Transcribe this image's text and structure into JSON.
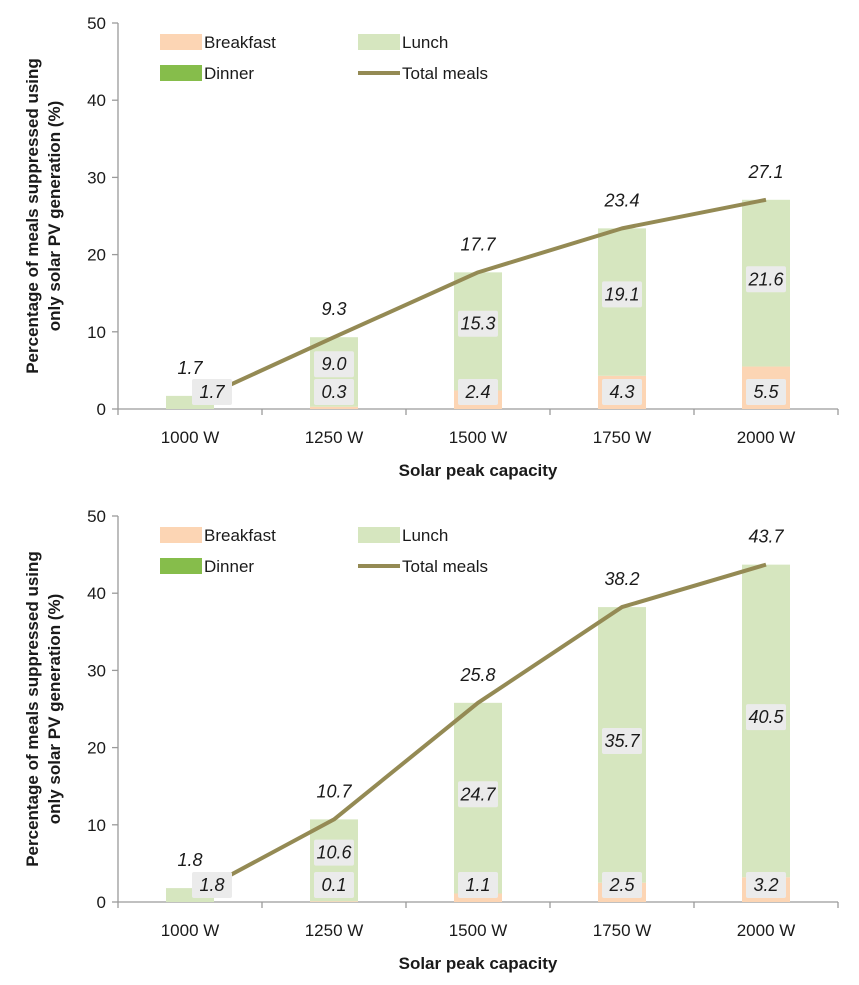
{
  "colors": {
    "breakfast": "#fcd5b4",
    "lunch": "#d6e6bf",
    "dinner": "#86bd4b",
    "total_line": "#948a54",
    "axis": "#9a9a9a",
    "label_box": "#ebebeb"
  },
  "chart_data": [
    {
      "type": "bar",
      "stacked": true,
      "categories": [
        "1000 W",
        "1250 W",
        "1500 W",
        "1750 W",
        "2000 W"
      ],
      "series": [
        {
          "name": "Breakfast",
          "values": [
            0.0,
            0.3,
            2.4,
            4.3,
            5.5
          ]
        },
        {
          "name": "Lunch",
          "values": [
            1.7,
            9.0,
            15.3,
            19.1,
            21.6
          ]
        },
        {
          "name": "Dinner",
          "values": [
            0,
            0,
            0,
            0,
            0
          ]
        },
        {
          "name": "Total meals",
          "type": "line",
          "values": [
            1.7,
            9.3,
            17.7,
            23.4,
            27.1
          ]
        }
      ],
      "xlabel": "Solar peak capacity",
      "ylabel": [
        "Percentage of meals suppressed using",
        "only solar PV generation (%)"
      ],
      "ylim": [
        0,
        50
      ],
      "yticks": [
        0,
        10,
        20,
        30,
        40,
        50
      ],
      "legend": "top-left",
      "grid": false
    },
    {
      "type": "bar",
      "stacked": true,
      "categories": [
        "1000 W",
        "1250 W",
        "1500 W",
        "1750 W",
        "2000 W"
      ],
      "series": [
        {
          "name": "Breakfast",
          "values": [
            0.0,
            0.1,
            1.1,
            2.5,
            3.2
          ]
        },
        {
          "name": "Lunch",
          "values": [
            1.8,
            10.6,
            24.7,
            35.7,
            40.5
          ]
        },
        {
          "name": "Dinner",
          "values": [
            0,
            0,
            0,
            0,
            0
          ]
        },
        {
          "name": "Total meals",
          "type": "line",
          "values": [
            1.8,
            10.7,
            25.8,
            38.2,
            43.7
          ]
        }
      ],
      "xlabel": "Solar peak capacity",
      "ylabel": [
        "Percentage of meals suppressed using",
        "only solar PV generation (%)"
      ],
      "ylim": [
        0,
        50
      ],
      "yticks": [
        0,
        10,
        20,
        30,
        40,
        50
      ],
      "legend": "top-left",
      "grid": false
    }
  ]
}
